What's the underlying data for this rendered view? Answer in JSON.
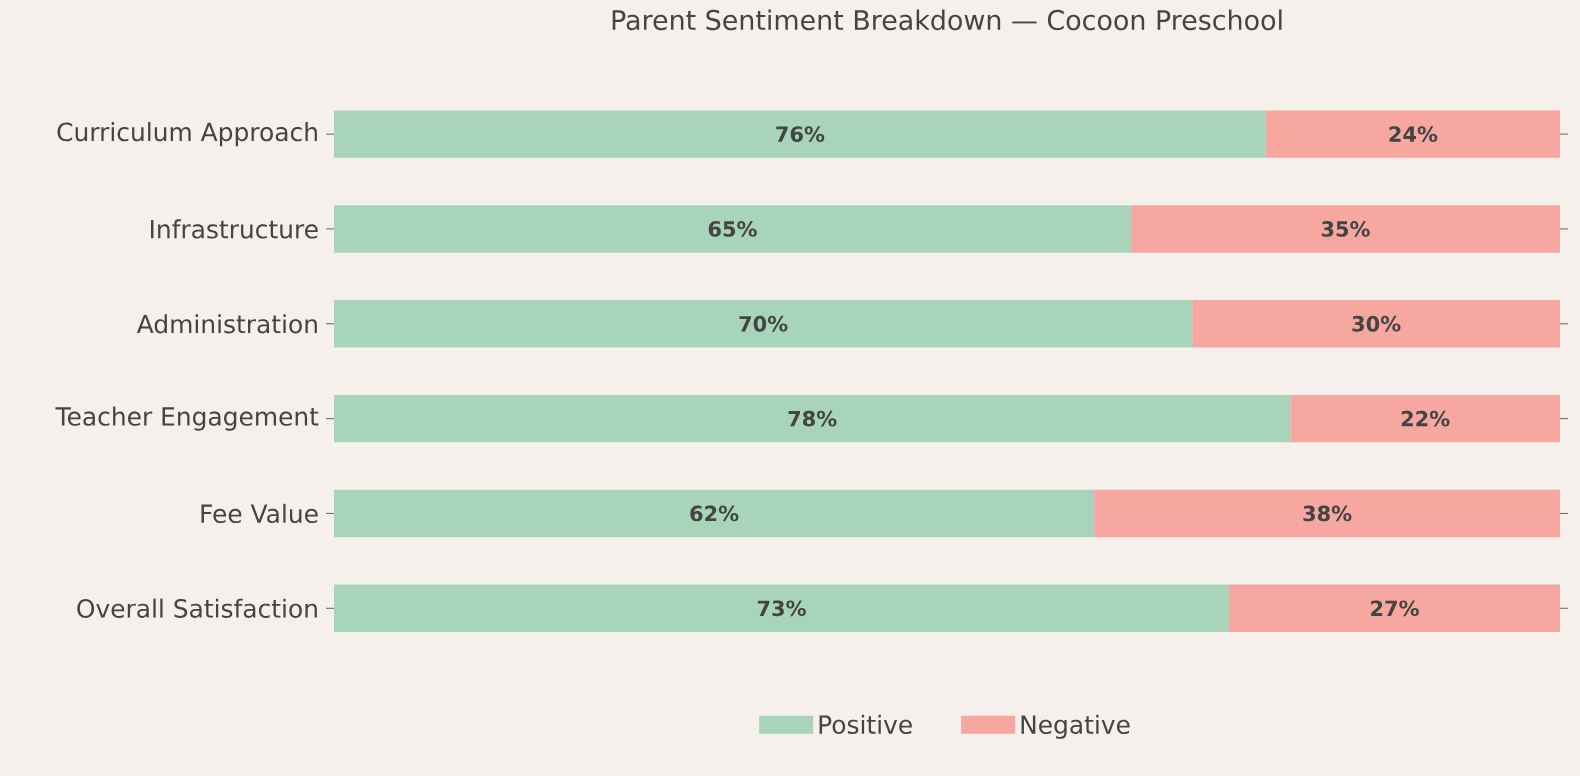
{
  "chart_data": {
    "type": "bar",
    "orientation": "horizontal",
    "stacked": true,
    "title": "Parent Sentiment Breakdown — Cocoon Preschool",
    "categories": [
      "Curriculum Approach",
      "Infrastructure",
      "Administration",
      "Teacher Engagement",
      "Fee Value",
      "Overall Satisfaction"
    ],
    "series": [
      {
        "name": "Positive",
        "color": "#a8d5ba",
        "values": [
          76,
          65,
          70,
          78,
          62,
          73
        ],
        "value_labels": [
          "76%",
          "65%",
          "70%",
          "78%",
          "62%",
          "73%"
        ]
      },
      {
        "name": "Negative",
        "color": "#f6a7a0",
        "values": [
          24,
          35,
          30,
          22,
          38,
          27
        ],
        "value_labels": [
          "24%",
          "35%",
          "30%",
          "22%",
          "38%",
          "27%"
        ]
      }
    ],
    "legend": "bottom",
    "tick_labels": "y",
    "grid": false
  }
}
